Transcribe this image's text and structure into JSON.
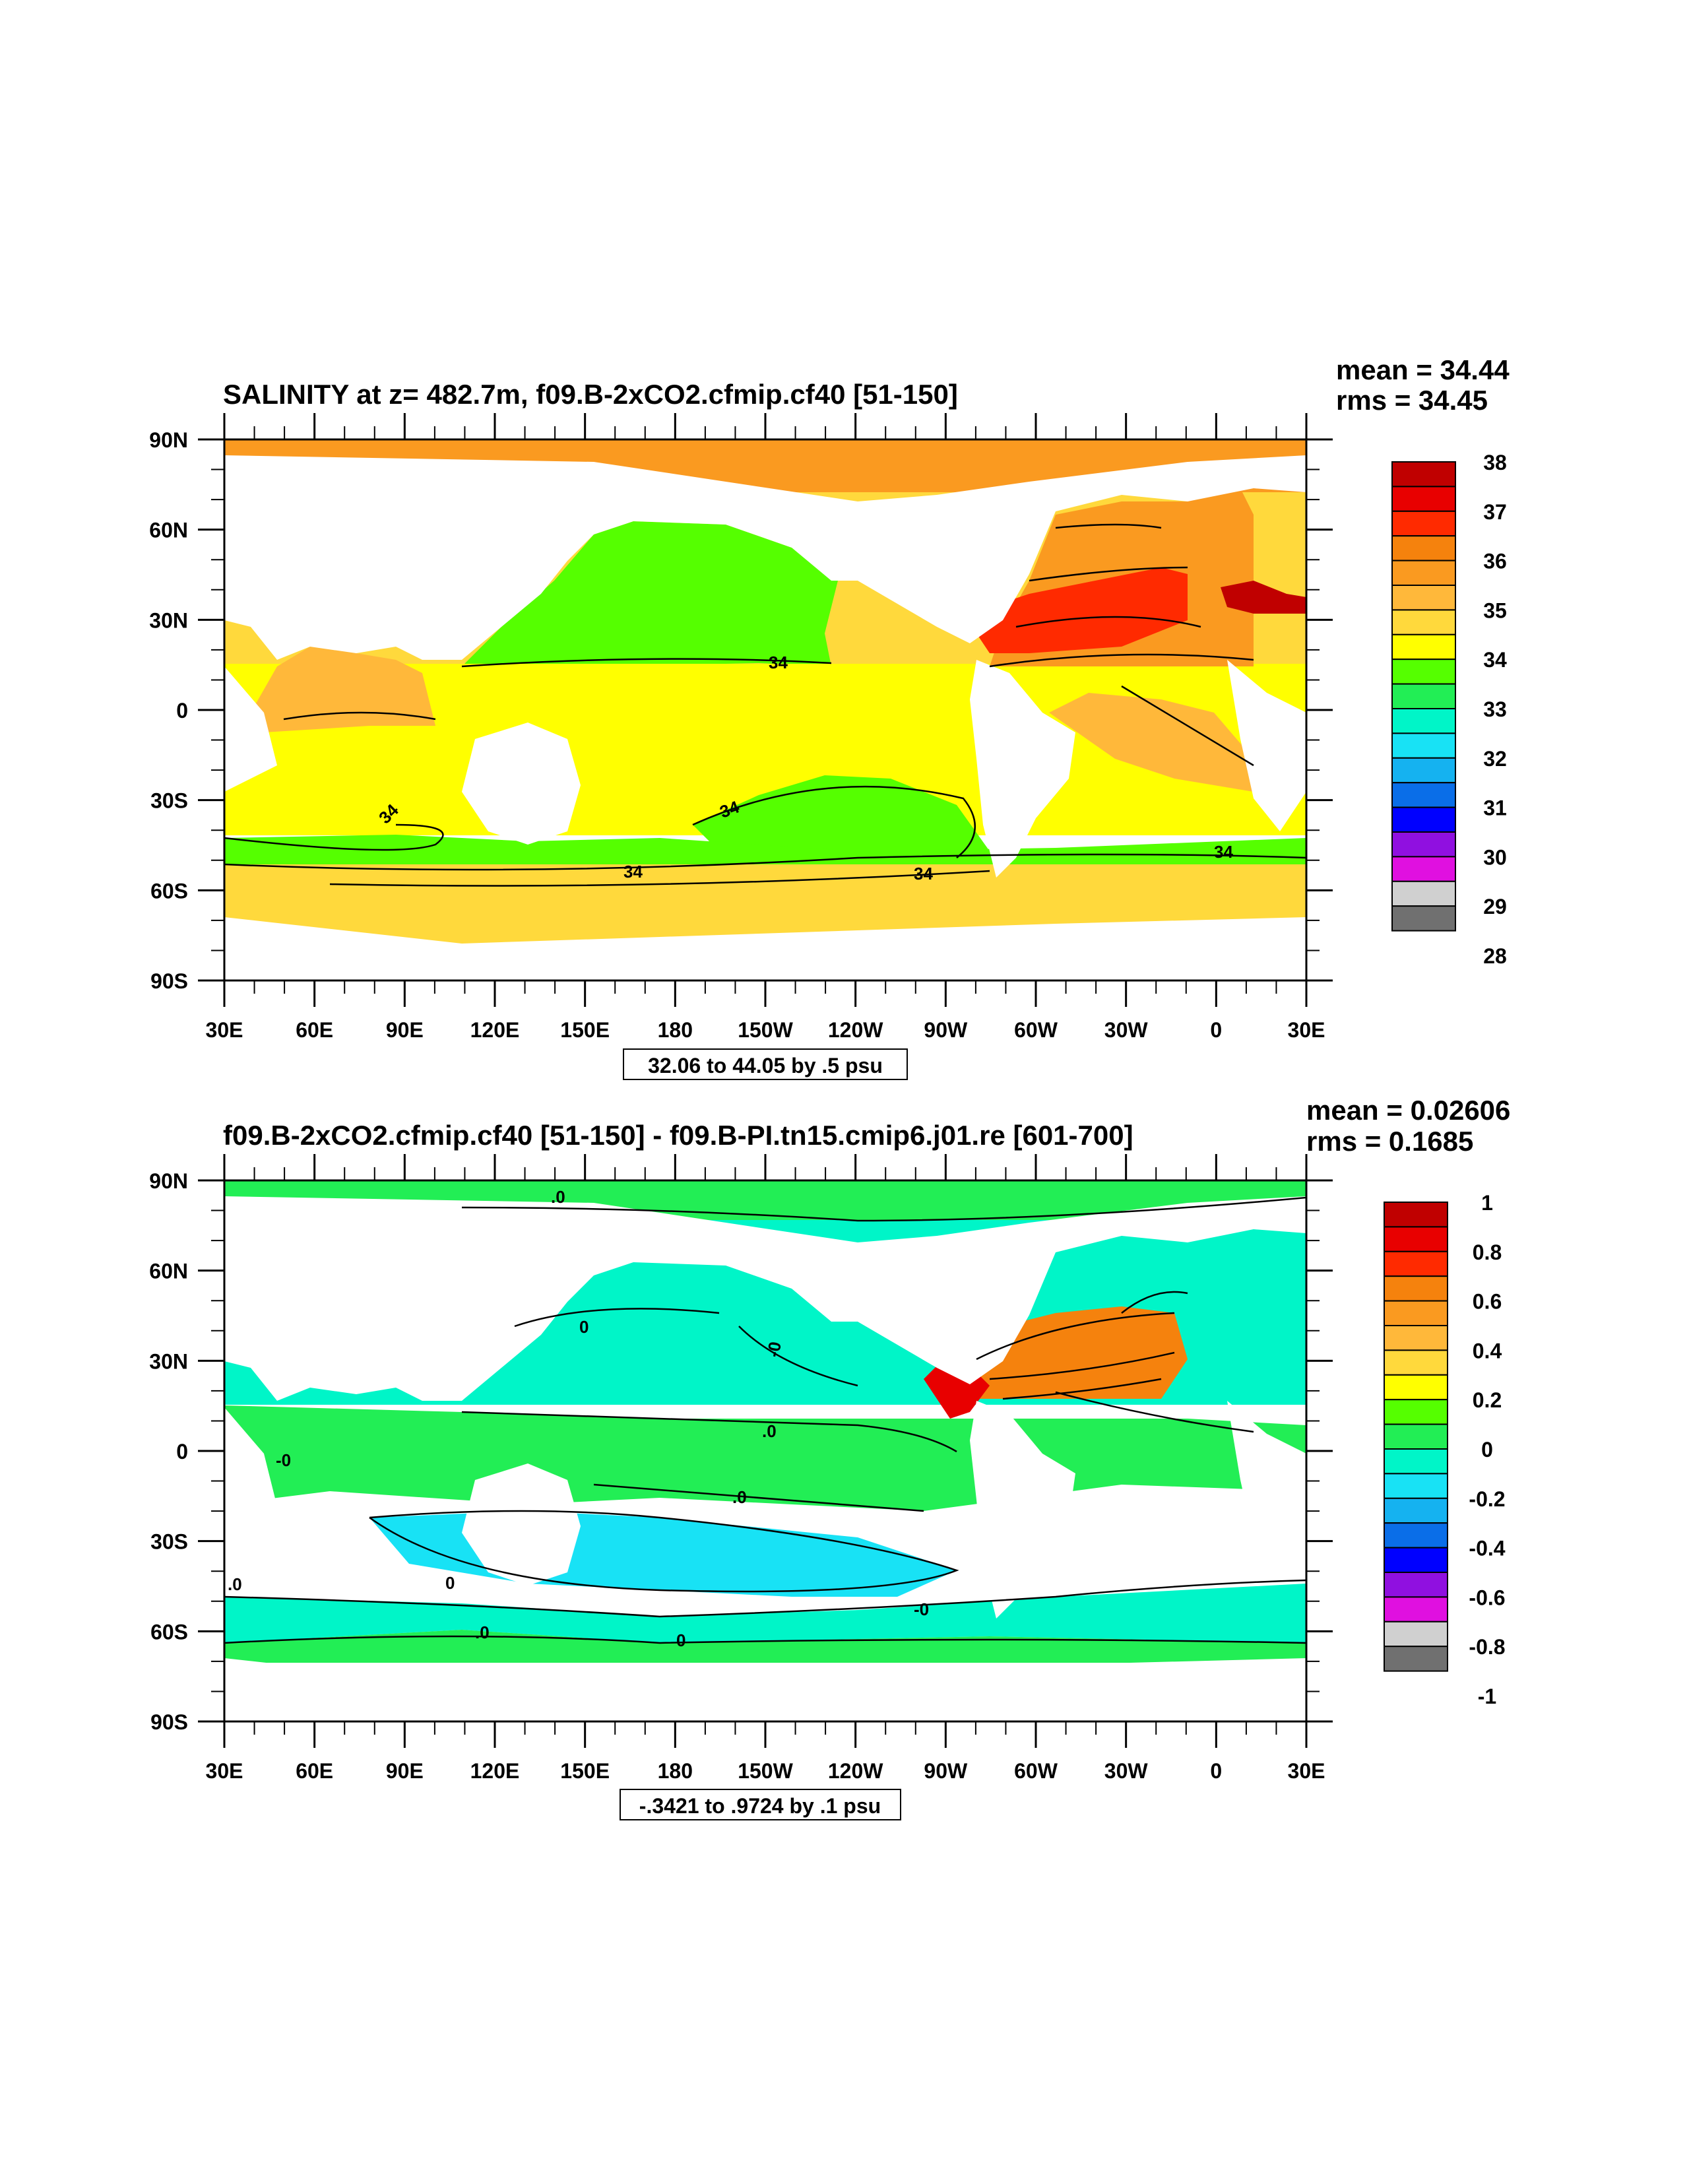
{
  "panels": [
    {
      "title": "SALINITY at z= 482.7m, f09.B-2xCO2.cfmip.cf40 [51-150]",
      "mean_text": "mean = 34.44",
      "rms_text": "rms = 34.45",
      "contour_info": "32.06 to 44.05 by .5 psu",
      "colorbar_labels": [
        "38",
        "37",
        "36",
        "35",
        "34",
        "33",
        "32",
        "31",
        "30",
        "29",
        "28"
      ],
      "contour_labels": [
        "34",
        "34",
        "34",
        "34",
        "34",
        "34"
      ]
    },
    {
      "title": "f09.B-2xCO2.cfmip.cf40 [51-150] - f09.B-PI.tn15.cmip6.j01.re [601-700]",
      "mean_text": "mean = 0.02606",
      "rms_text": "rms = 0.1685",
      "contour_info": "-.3421 to .9724 by .1 psu",
      "colorbar_labels": [
        "1",
        "0.8",
        "0.6",
        "0.4",
        "0.2",
        "0",
        "-0.2",
        "-0.4",
        "-0.6",
        "-0.8",
        "-1"
      ],
      "contour_labels": [
        ".0",
        "0",
        ".0",
        "-0",
        ".0",
        "-0",
        ".0",
        ".0",
        "0",
        "-0",
        "0"
      ]
    }
  ],
  "colorbar_colors": [
    "#c00000",
    "#e80000",
    "#ff2a00",
    "#f5820d",
    "#fa9a20",
    "#ffb83a",
    "#ffd93c",
    "#ffff00",
    "#55ff00",
    "#22ee55",
    "#00f5c8",
    "#18e2f5",
    "#15b2f0",
    "#0a6ee8",
    "#0000ff",
    "#9010e0",
    "#e010e0",
    "#d0d0d0",
    "#707070"
  ],
  "lat_labels": [
    "90N",
    "60N",
    "30N",
    "0",
    "30S",
    "60S",
    "90S"
  ],
  "lon_labels": [
    "30E",
    "60E",
    "90E",
    "120E",
    "150E",
    "180",
    "150W",
    "120W",
    "90W",
    "60W",
    "30W",
    "0",
    "30E"
  ],
  "colors": {
    "land": "#ffffff",
    "line": "#000000"
  }
}
